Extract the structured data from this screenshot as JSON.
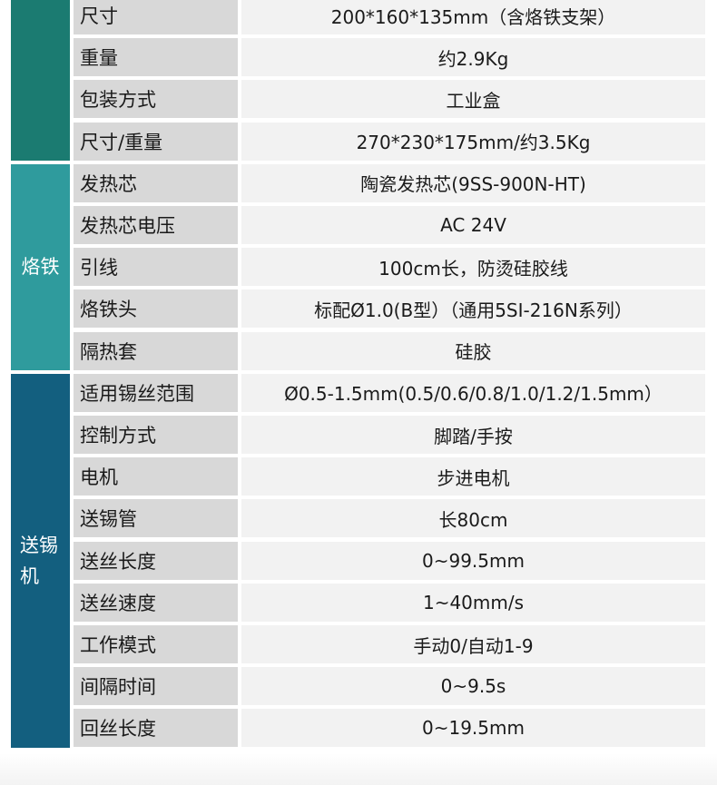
{
  "colors": {
    "group1": "#1b7b71",
    "group2": "#2f9b9d",
    "group3": "#135f7f"
  },
  "groups": [
    {
      "label": "",
      "rows": [
        {
          "label": "尺寸",
          "value": "200*160*135mm（含烙铁支架）"
        },
        {
          "label": "重量",
          "value": "约2.9Kg"
        },
        {
          "label": "包装方式",
          "value": "工业盒"
        },
        {
          "label": "尺寸/重量",
          "value": "270*230*175mm/约3.5Kg"
        }
      ]
    },
    {
      "label": "烙铁",
      "rows": [
        {
          "label": "发热芯",
          "value": "陶瓷发热芯(9SS-900N-HT)"
        },
        {
          "label": "发热芯电压",
          "value": "AC 24V"
        },
        {
          "label": "引线",
          "value": "100cm长，防烫硅胶线"
        },
        {
          "label": "烙铁头",
          "value": "标配Ø1.0(B型）（通用5SI-216N系列）"
        },
        {
          "label": "隔热套",
          "value": "硅胶"
        }
      ]
    },
    {
      "label": "送锡机",
      "rows": [
        {
          "label": "适用锡丝范围",
          "value": "Ø0.5-1.5mm(0.5/0.6/0.8/1.0/1.2/1.5mm）"
        },
        {
          "label": "控制方式",
          "value": "脚踏/手按"
        },
        {
          "label": "电机",
          "value": "步进电机"
        },
        {
          "label": "送锡管",
          "value": "长80cm"
        },
        {
          "label": "送丝长度",
          "value": "0~99.5mm"
        },
        {
          "label": "送丝速度",
          "value": "1~40mm/s"
        },
        {
          "label": "工作模式",
          "value": "手动0/自动1-9"
        },
        {
          "label": "间隔时间",
          "value": "0~9.5s"
        },
        {
          "label": "回丝长度",
          "value": "0~19.5mm"
        }
      ]
    }
  ]
}
